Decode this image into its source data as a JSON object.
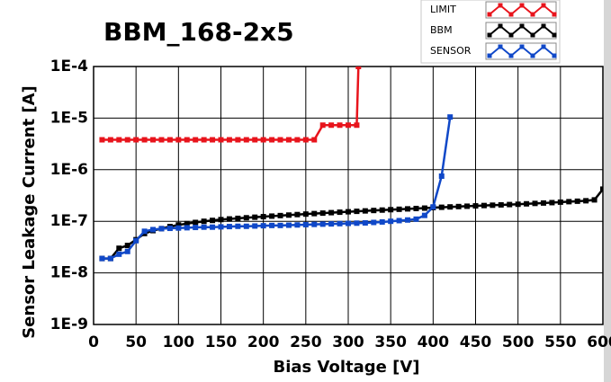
{
  "chart_data": {
    "type": "line",
    "title": "BBM_168-2x5",
    "x_label": "Bias Voltage [V]",
    "y_label": "Sensor Leakage Current [A]",
    "xlim": [
      0,
      600
    ],
    "xticks": [
      0,
      50,
      100,
      150,
      200,
      250,
      300,
      350,
      400,
      450,
      500,
      550,
      600
    ],
    "ylim": [
      1e-09,
      0.0001
    ],
    "log_y": true,
    "grid": true,
    "legend": "top-right",
    "yticks": [
      {
        "value": 1e-09,
        "label": "1E-9"
      },
      {
        "value": 1e-08,
        "label": "1E-8"
      },
      {
        "value": 1e-07,
        "label": "1E-7"
      },
      {
        "value": 1e-06,
        "label": "1E-6"
      },
      {
        "value": 1e-05,
        "label": "1E-5"
      },
      {
        "value": 0.0001,
        "label": "1E-4"
      }
    ],
    "series": [
      {
        "name": "LIMIT",
        "color": "#e8141c",
        "x": [
          10,
          20,
          30,
          40,
          50,
          60,
          70,
          80,
          90,
          100,
          110,
          120,
          130,
          140,
          150,
          160,
          170,
          180,
          190,
          200,
          210,
          220,
          230,
          240,
          250,
          260,
          270,
          280,
          290,
          300,
          310,
          312
        ],
        "values": [
          3.8e-06,
          3.8e-06,
          3.8e-06,
          3.8e-06,
          3.8e-06,
          3.8e-06,
          3.8e-06,
          3.8e-06,
          3.8e-06,
          3.8e-06,
          3.8e-06,
          3.8e-06,
          3.8e-06,
          3.8e-06,
          3.8e-06,
          3.8e-06,
          3.8e-06,
          3.8e-06,
          3.8e-06,
          3.8e-06,
          3.8e-06,
          3.8e-06,
          3.8e-06,
          3.8e-06,
          3.8e-06,
          3.8e-06,
          7.3e-06,
          7.3e-06,
          7.3e-06,
          7.3e-06,
          7.3e-06,
          0.0001
        ]
      },
      {
        "name": "BBM",
        "color": "#000000",
        "x": [
          10,
          20,
          30,
          40,
          50,
          60,
          70,
          80,
          90,
          100,
          110,
          120,
          130,
          140,
          150,
          160,
          170,
          180,
          190,
          200,
          210,
          220,
          230,
          240,
          250,
          260,
          270,
          280,
          290,
          300,
          310,
          320,
          330,
          340,
          350,
          360,
          370,
          380,
          390,
          400,
          410,
          420,
          430,
          440,
          450,
          460,
          470,
          480,
          490,
          500,
          510,
          520,
          530,
          540,
          550,
          560,
          570,
          580,
          590,
          600
        ],
        "values": [
          1.9e-08,
          1.9e-08,
          3e-08,
          3.4e-08,
          4.4e-08,
          5.8e-08,
          6.6e-08,
          7.2e-08,
          7.9e-08,
          8.5e-08,
          9e-08,
          9.5e-08,
          1e-07,
          1.04e-07,
          1.08e-07,
          1.11e-07,
          1.14e-07,
          1.17e-07,
          1.2e-07,
          1.23e-07,
          1.26e-07,
          1.29e-07,
          1.32e-07,
          1.35e-07,
          1.38e-07,
          1.41e-07,
          1.44e-07,
          1.47e-07,
          1.5e-07,
          1.53e-07,
          1.56e-07,
          1.59e-07,
          1.62e-07,
          1.65e-07,
          1.68e-07,
          1.71e-07,
          1.74e-07,
          1.77e-07,
          1.8e-07,
          1.84e-07,
          1.87e-07,
          1.9e-07,
          1.93e-07,
          1.96e-07,
          1.99e-07,
          2.02e-07,
          2.05e-07,
          2.08e-07,
          2.11e-07,
          2.14e-07,
          2.18e-07,
          2.22e-07,
          2.26e-07,
          2.3e-07,
          2.35e-07,
          2.4e-07,
          2.45e-07,
          2.5e-07,
          2.6e-07,
          4.2e-07
        ]
      },
      {
        "name": "SENSOR",
        "color": "#1048c8",
        "x": [
          10,
          20,
          30,
          40,
          50,
          60,
          70,
          80,
          90,
          100,
          110,
          120,
          130,
          140,
          150,
          160,
          170,
          180,
          190,
          200,
          210,
          220,
          230,
          240,
          250,
          260,
          270,
          280,
          290,
          300,
          310,
          320,
          330,
          340,
          350,
          360,
          370,
          380,
          390,
          400,
          410,
          420
        ],
        "values": [
          1.9e-08,
          1.9e-08,
          2.3e-08,
          2.6e-08,
          4.2e-08,
          6.4e-08,
          6.9e-08,
          7.2e-08,
          7.3e-08,
          7.4e-08,
          7.5e-08,
          7.6e-08,
          7.7e-08,
          7.7e-08,
          7.8e-08,
          7.9e-08,
          8e-08,
          8e-08,
          8.1e-08,
          8.2e-08,
          8.3e-08,
          8.3e-08,
          8.4e-08,
          8.5e-08,
          8.6e-08,
          8.7e-08,
          8.8e-08,
          8.9e-08,
          9e-08,
          9.1e-08,
          9.2e-08,
          9.3e-08,
          9.5e-08,
          9.7e-08,
          1e-07,
          1.03e-07,
          1.06e-07,
          1.1e-07,
          1.3e-07,
          1.9e-07,
          7.5e-07,
          1.05e-05
        ]
      }
    ]
  }
}
